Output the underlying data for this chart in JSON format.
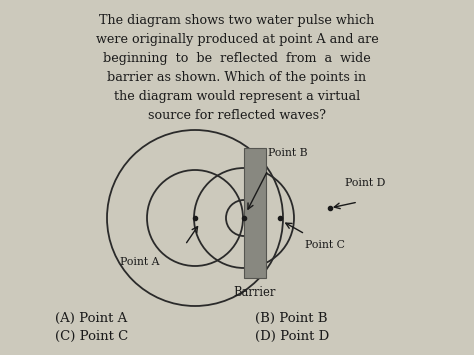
{
  "background_color": "#ccc9bc",
  "text_color": "#1a1a1a",
  "question_text_lines": [
    "The diagram shows two water pulse which",
    "were originally produced at point A and are",
    "beginning  to  be  reflected  from  a  wide",
    "barrier as shown. Which of the points in",
    "the diagram would represent a virtual",
    "source for reflected waves?"
  ],
  "barrier_color": "#888880",
  "circle_color": "#2a2a2a",
  "dot_color": "#1a1a1a",
  "answers": [
    "(A) Point A",
    "(C) Point C",
    "(B) Point B",
    "(D) Point D"
  ],
  "font_size_question": 9.2,
  "font_size_labels": 7.8,
  "font_size_answers": 9.5
}
